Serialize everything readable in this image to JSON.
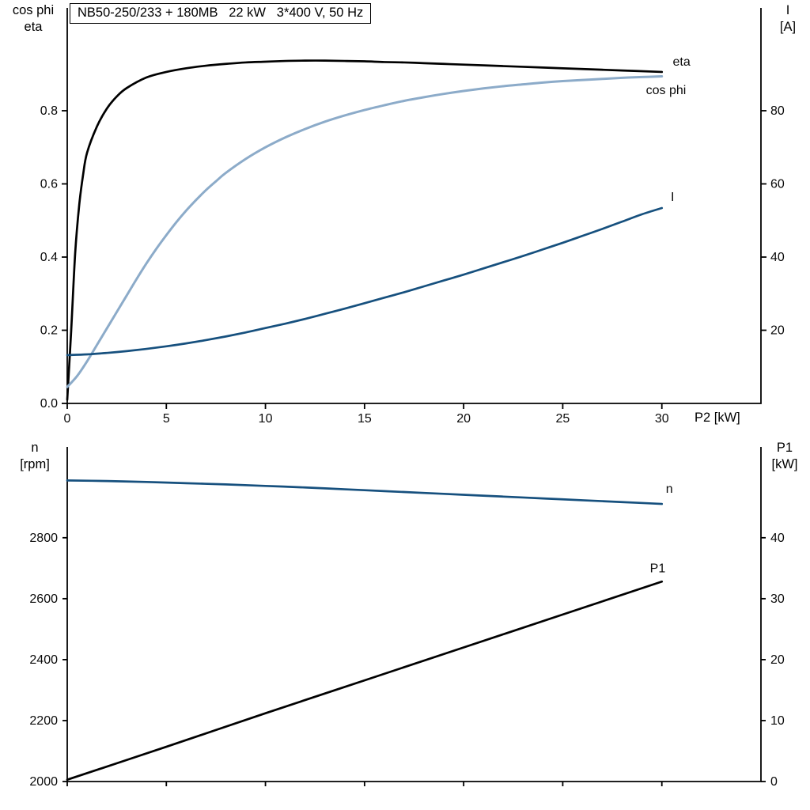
{
  "colors": {
    "black": "#000000",
    "dark_blue": "#16507e",
    "light_blue": "#8cabc9"
  },
  "chart_data": [
    {
      "type": "line",
      "title": "NB50-250/233 + 180MB   22 kW   3*400 V, 50 Hz",
      "x_axis": {
        "label": "P2 [kW]",
        "min": 0,
        "max": 35,
        "ticks": [
          {
            "v": 0,
            "label": "0"
          },
          {
            "v": 5,
            "label": "5"
          },
          {
            "v": 10,
            "label": "10"
          },
          {
            "v": 15,
            "label": "15"
          },
          {
            "v": 20,
            "label": "20"
          },
          {
            "v": 25,
            "label": "25"
          },
          {
            "v": 30,
            "label": "30"
          }
        ]
      },
      "y_left": {
        "label_lines": [
          "cos phi",
          "eta"
        ],
        "min": 0,
        "max": 1.081,
        "ticks": [
          {
            "v": 0,
            "label": "0.0"
          },
          {
            "v": 0.2,
            "label": "0.2"
          },
          {
            "v": 0.4,
            "label": "0.4"
          },
          {
            "v": 0.6,
            "label": "0.6"
          },
          {
            "v": 0.8,
            "label": "0.8"
          }
        ]
      },
      "y_right": {
        "label_lines": [
          "I",
          "[A]"
        ],
        "min": 0,
        "max": 108.1,
        "ticks": [
          {
            "v": 20,
            "label": "20"
          },
          {
            "v": 40,
            "label": "40"
          },
          {
            "v": 60,
            "label": "60"
          },
          {
            "v": 80,
            "label": "80"
          }
        ]
      },
      "grid": false,
      "series": [
        {
          "name": "eta",
          "axis": "left",
          "color": "#000000",
          "width": 2.7,
          "label": "eta",
          "label_at": [
            30.55,
            0.923
          ],
          "points": [
            [
              0,
              0.01
            ],
            [
              0.2,
              0.2
            ],
            [
              0.4,
              0.41
            ],
            [
              0.6,
              0.54
            ],
            [
              0.8,
              0.625
            ],
            [
              1,
              0.685
            ],
            [
              1.5,
              0.757
            ],
            [
              2,
              0.806
            ],
            [
              2.5,
              0.839
            ],
            [
              3,
              0.862
            ],
            [
              4,
              0.891
            ],
            [
              5,
              0.906
            ],
            [
              6,
              0.916
            ],
            [
              7,
              0.923
            ],
            [
              8,
              0.928
            ],
            [
              9,
              0.932
            ],
            [
              10,
              0.934
            ],
            [
              11,
              0.936
            ],
            [
              12,
              0.937
            ],
            [
              13,
              0.937
            ],
            [
              14,
              0.936
            ],
            [
              15,
              0.935
            ],
            [
              16,
              0.933
            ],
            [
              17,
              0.932
            ],
            [
              18,
              0.93
            ],
            [
              19,
              0.928
            ],
            [
              20,
              0.926
            ],
            [
              22,
              0.922
            ],
            [
              24,
              0.918
            ],
            [
              26,
              0.914
            ],
            [
              28,
              0.91
            ],
            [
              30,
              0.906
            ]
          ]
        },
        {
          "name": "cos phi",
          "axis": "left",
          "color": "#8cabc9",
          "width": 3,
          "label": "cos phi",
          "label_at": [
            29.2,
            0.845
          ],
          "points": [
            [
              0,
              0.045
            ],
            [
              0.5,
              0.075
            ],
            [
              1,
              0.115
            ],
            [
              1.5,
              0.16
            ],
            [
              2,
              0.205
            ],
            [
              2.5,
              0.25
            ],
            [
              3,
              0.295
            ],
            [
              3.5,
              0.34
            ],
            [
              4,
              0.383
            ],
            [
              4.5,
              0.423
            ],
            [
              5,
              0.46
            ],
            [
              5.5,
              0.495
            ],
            [
              6,
              0.527
            ],
            [
              6.5,
              0.556
            ],
            [
              7,
              0.583
            ],
            [
              7.5,
              0.607
            ],
            [
              8,
              0.63
            ],
            [
              9,
              0.668
            ],
            [
              10,
              0.7
            ],
            [
              11,
              0.727
            ],
            [
              12,
              0.75
            ],
            [
              13,
              0.77
            ],
            [
              14,
              0.787
            ],
            [
              15,
              0.802
            ],
            [
              16,
              0.815
            ],
            [
              17,
              0.827
            ],
            [
              18,
              0.837
            ],
            [
              19,
              0.846
            ],
            [
              20,
              0.854
            ],
            [
              21,
              0.861
            ],
            [
              22,
              0.867
            ],
            [
              23,
              0.872
            ],
            [
              24,
              0.877
            ],
            [
              25,
              0.881
            ],
            [
              26,
              0.884
            ],
            [
              27,
              0.887
            ],
            [
              28,
              0.89
            ],
            [
              29,
              0.892
            ],
            [
              30,
              0.894
            ]
          ]
        },
        {
          "name": "I",
          "axis": "right",
          "color": "#16507e",
          "width": 2.7,
          "label": "I",
          "label_at": [
            30.45,
            55.3
          ],
          "points": [
            [
              0,
              13.2
            ],
            [
              1,
              13.4
            ],
            [
              2,
              13.8
            ],
            [
              3,
              14.3
            ],
            [
              4,
              14.9
            ],
            [
              5,
              15.6
            ],
            [
              6,
              16.4
            ],
            [
              7,
              17.3
            ],
            [
              8,
              18.3
            ],
            [
              9,
              19.4
            ],
            [
              10,
              20.6
            ],
            [
              11,
              21.8
            ],
            [
              12,
              23.1
            ],
            [
              13,
              24.5
            ],
            [
              14,
              25.9
            ],
            [
              15,
              27.4
            ],
            [
              16,
              28.9
            ],
            [
              17,
              30.4
            ],
            [
              18,
              32.0
            ],
            [
              19,
              33.6
            ],
            [
              20,
              35.2
            ],
            [
              21,
              36.9
            ],
            [
              22,
              38.6
            ],
            [
              23,
              40.3
            ],
            [
              24,
              42.1
            ],
            [
              25,
              43.9
            ],
            [
              26,
              45.8
            ],
            [
              27,
              47.7
            ],
            [
              28,
              49.7
            ],
            [
              29,
              51.7
            ],
            [
              30,
              53.4
            ]
          ]
        }
      ]
    },
    {
      "type": "line",
      "x_axis": {
        "label": "",
        "min": 0,
        "max": 35,
        "ticks": [
          {
            "v": 0
          },
          {
            "v": 5
          },
          {
            "v": 10
          },
          {
            "v": 15
          },
          {
            "v": 20
          },
          {
            "v": 25
          },
          {
            "v": 30
          }
        ]
      },
      "y_left": {
        "label_lines": [
          "n",
          "[rpm]"
        ],
        "min": 2000,
        "max": 3098,
        "ticks": [
          {
            "v": 2000,
            "label": "2000"
          },
          {
            "v": 2200,
            "label": "2200"
          },
          {
            "v": 2400,
            "label": "2400"
          },
          {
            "v": 2600,
            "label": "2600"
          },
          {
            "v": 2800,
            "label": "2800"
          }
        ]
      },
      "y_right": {
        "label_lines": [
          "P1",
          "[kW]"
        ],
        "min": 0,
        "max": 54.9,
        "ticks": [
          {
            "v": 0,
            "label": "0"
          },
          {
            "v": 10,
            "label": "10"
          },
          {
            "v": 20,
            "label": "20"
          },
          {
            "v": 30,
            "label": "30"
          },
          {
            "v": 40,
            "label": "40"
          }
        ]
      },
      "grid": false,
      "series": [
        {
          "name": "n",
          "axis": "left",
          "color": "#16507e",
          "width": 2.7,
          "label": "n",
          "label_at": [
            30.2,
            2948
          ],
          "points": [
            [
              0,
              2988
            ],
            [
              2,
              2986
            ],
            [
              4,
              2983
            ],
            [
              6,
              2979
            ],
            [
              8,
              2975
            ],
            [
              10,
              2970
            ],
            [
              12,
              2965
            ],
            [
              14,
              2959
            ],
            [
              16,
              2953
            ],
            [
              18,
              2947
            ],
            [
              20,
              2941
            ],
            [
              22,
              2935
            ],
            [
              24,
              2929
            ],
            [
              26,
              2923
            ],
            [
              28,
              2917
            ],
            [
              30,
              2911
            ]
          ]
        },
        {
          "name": "P1",
          "axis": "right",
          "color": "#000000",
          "width": 2.7,
          "label": "P1",
          "label_at": [
            29.4,
            34.3
          ],
          "points": [
            [
              0,
              0.3
            ],
            [
              5,
              5.7
            ],
            [
              10,
              11.2
            ],
            [
              15,
              16.6
            ],
            [
              20,
              22.0
            ],
            [
              25,
              27.4
            ],
            [
              30,
              32.8
            ]
          ]
        }
      ]
    }
  ]
}
